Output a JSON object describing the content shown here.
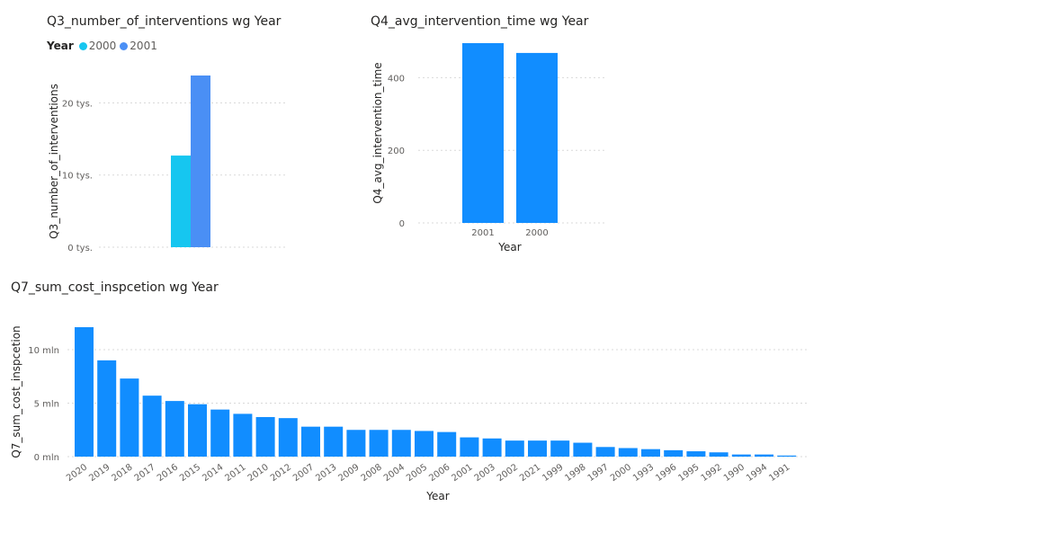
{
  "charts": {
    "q3": {
      "title": "Q3_number_of_interventions wg Year",
      "legend_title": "Year",
      "legend_items": [
        "2000",
        "2001"
      ]
    },
    "q4": {
      "title": "Q4_avg_intervention_time wg Year"
    },
    "q7": {
      "title": "Q7_sum_cost_inspcetion wg Year"
    }
  },
  "chart_data": [
    {
      "id": "q3",
      "type": "bar",
      "title": "Q3_number_of_interventions wg Year",
      "xlabel": "",
      "ylabel": "Q3_number_of_interventions",
      "categories": [
        ""
      ],
      "series": [
        {
          "name": "2000",
          "values": [
            12700
          ],
          "color": "#16c6f0"
        },
        {
          "name": "2001",
          "values": [
            23800
          ],
          "color": "#4a8ff5"
        }
      ],
      "ylim": [
        0,
        23800
      ],
      "yticks": [
        0,
        10000,
        20000
      ],
      "ytick_labels": [
        "0 tys.",
        "10 tys.",
        "20 tys."
      ],
      "grid": true,
      "legend": "top-left"
    },
    {
      "id": "q4",
      "type": "bar",
      "title": "Q4_avg_intervention_time wg Year",
      "xlabel": "Year",
      "ylabel": "Q4_avg_intervention_time",
      "categories": [
        "2001",
        "2000"
      ],
      "values": [
        495,
        468
      ],
      "color": "#118dff",
      "ylim": [
        0,
        495
      ],
      "yticks": [
        0,
        200,
        400
      ],
      "ytick_labels": [
        "0",
        "200",
        "400"
      ],
      "grid": true
    },
    {
      "id": "q7",
      "type": "bar",
      "title": "Q7_sum_cost_inspcetion wg Year",
      "xlabel": "Year",
      "ylabel": "Q7_sum_cost_inspcetion",
      "categories": [
        "2020",
        "2019",
        "2018",
        "2017",
        "2016",
        "2015",
        "2014",
        "2011",
        "2010",
        "2012",
        "2007",
        "2013",
        "2009",
        "2008",
        "2004",
        "2005",
        "2006",
        "2001",
        "2003",
        "2002",
        "2021",
        "1999",
        "1998",
        "1997",
        "2000",
        "1993",
        "1996",
        "1995",
        "1992",
        "1990",
        "1994",
        "1991"
      ],
      "values": [
        12.1,
        9.0,
        7.3,
        5.7,
        5.2,
        4.9,
        4.4,
        4.0,
        3.7,
        3.6,
        2.8,
        2.8,
        2.5,
        2.5,
        2.5,
        2.4,
        2.3,
        1.8,
        1.7,
        1.5,
        1.5,
        1.5,
        1.3,
        0.9,
        0.8,
        0.7,
        0.6,
        0.5,
        0.4,
        0.2,
        0.2,
        0.1
      ],
      "unit": "mln",
      "color": "#118dff",
      "ylim": [
        0,
        12.1
      ],
      "yticks": [
        0,
        5,
        10
      ],
      "ytick_labels": [
        "0 mln",
        "5 mln",
        "10 mln"
      ],
      "grid": true
    }
  ]
}
